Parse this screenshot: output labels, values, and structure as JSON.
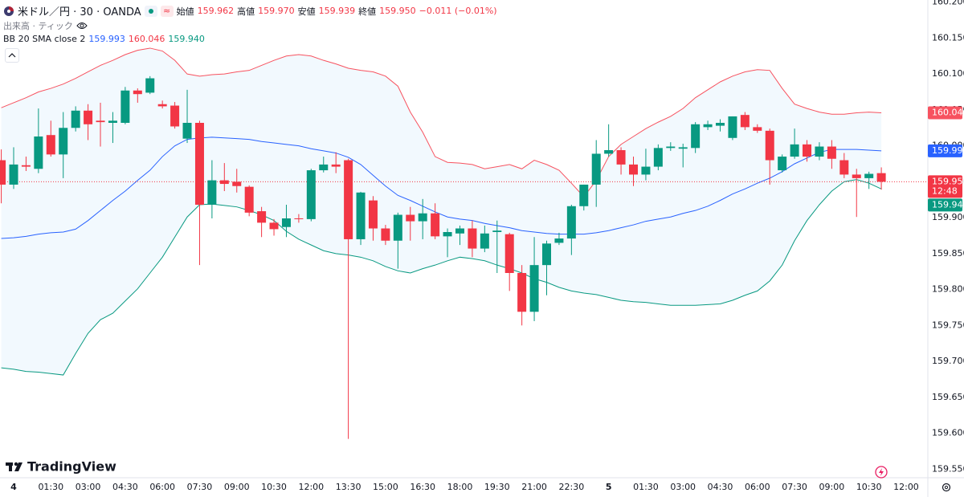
{
  "header": {
    "symbol": "米ドル／円 · 30 · OANDA",
    "ohlc": [
      {
        "label": "始値",
        "value": "159.962"
      },
      {
        "label": "高値",
        "value": "159.970"
      },
      {
        "label": "安値",
        "value": "159.939"
      },
      {
        "label": "終値",
        "value": "159.950"
      }
    ],
    "change": "−0.011 (−0.01%)",
    "volume": "出来高 · ティック",
    "bb": {
      "label": "BB 20 SMA close 2",
      "values": [
        "159.993",
        "160.046",
        "159.940"
      ]
    },
    "countdown": "12:48"
  },
  "logo": "TradingView",
  "chart_data": {
    "type": "candlestick",
    "categories": [
      null,
      "4",
      null,
      null,
      "01:30",
      null,
      null,
      "03:00",
      null,
      null,
      "04:30",
      null,
      null,
      "06:00",
      null,
      null,
      "07:30",
      null,
      null,
      "09:00",
      null,
      null,
      "10:30",
      null,
      null,
      "12:00",
      null,
      null,
      "13:30",
      null,
      null,
      "15:00",
      null,
      null,
      "16:30",
      null,
      null,
      "18:00",
      null,
      null,
      "19:30",
      null,
      null,
      "21:00",
      null,
      null,
      "22:30",
      null,
      null,
      "5",
      null,
      null,
      "01:30",
      null,
      null,
      "03:00",
      null,
      null,
      "04:30",
      null,
      null,
      "06:00",
      null,
      null,
      "07:30",
      null,
      null,
      "09:00",
      null,
      null,
      "10:30",
      null,
      null,
      "12:00"
    ],
    "open": [
      159.98,
      159.946,
      159.973,
      159.968,
      160.015,
      159.988,
      160.025,
      160.049,
      160.035,
      160.032,
      160.032,
      160.077,
      160.074,
      160.058,
      160.056,
      160.01,
      160.032,
      159.918,
      159.952,
      159.95,
      159.943,
      159.909,
      159.893,
      159.887,
      159.899,
      159.898,
      159.966,
      159.974,
      159.98,
      159.87,
      159.924,
      159.885,
      159.868,
      159.904,
      159.895,
      159.906,
      159.874,
      159.878,
      159.885,
      159.857,
      159.88,
      159.877,
      159.823,
      159.769,
      159.834,
      159.865,
      159.871,
      159.916,
      159.946,
      159.989,
      159.994,
      159.974,
      159.96,
      159.971,
      159.997,
      159.996,
      159.997,
      160.026,
      160.028,
      160.011,
      160.043,
      160.026,
      160.021,
      159.966,
      159.985,
      160.002,
      159.985,
      159.999,
      159.98,
      159.96,
      159.955,
      159.962,
      null,
      null
    ],
    "high": [
      159.995,
      159.998,
      159.985,
      160.052,
      160.035,
      160.047,
      160.055,
      160.058,
      160.06,
      160.047,
      160.082,
      160.08,
      160.097,
      160.063,
      160.061,
      160.078,
      160.035,
      159.98,
      159.976,
      159.968,
      159.945,
      159.915,
      159.898,
      159.918,
      159.905,
      159.968,
      159.985,
      159.991,
      159.982,
      159.936,
      159.93,
      159.89,
      159.907,
      159.915,
      159.926,
      159.92,
      159.885,
      159.889,
      159.896,
      159.889,
      159.896,
      159.879,
      159.834,
      159.873,
      159.868,
      159.879,
      159.918,
      159.946,
      160.008,
      160.03,
      159.998,
      159.985,
      159.996,
      160.002,
      160.005,
      160.003,
      160.033,
      160.035,
      160.037,
      160.041,
      160.047,
      160.03,
      160.024,
      159.988,
      160.024,
      160.008,
      160.005,
      160.008,
      159.99,
      159.968,
      159.964,
      159.97,
      null,
      null
    ],
    "low": [
      159.92,
      159.94,
      159.965,
      159.962,
      159.985,
      159.955,
      160.02,
      160.008,
      159.999,
      160.004,
      160.03,
      160.06,
      160.072,
      160.052,
      160.024,
      160.004,
      159.834,
      159.899,
      159.937,
      159.935,
      159.902,
      159.873,
      159.875,
      159.873,
      159.893,
      159.895,
      159.963,
      159.962,
      159.592,
      159.862,
      159.868,
      159.862,
      159.829,
      159.868,
      159.87,
      159.87,
      159.845,
      159.862,
      159.845,
      159.852,
      159.823,
      159.798,
      159.75,
      159.756,
      159.792,
      159.862,
      159.848,
      159.91,
      159.915,
      159.985,
      159.96,
      159.944,
      159.952,
      159.966,
      159.993,
      159.97,
      159.99,
      160.022,
      160.02,
      160.008,
      160.022,
      160.018,
      159.946,
      159.963,
      159.982,
      159.978,
      159.98,
      159.968,
      159.955,
      159.901,
      159.94,
      159.939,
      null,
      null
    ],
    "close": [
      159.946,
      159.974,
      159.971,
      160.013,
      159.988,
      160.025,
      160.049,
      160.03,
      160.033,
      160.035,
      160.077,
      160.072,
      160.094,
      160.055,
      160.027,
      160.032,
      159.918,
      159.952,
      159.947,
      159.944,
      159.907,
      159.893,
      159.884,
      159.899,
      159.898,
      159.966,
      159.974,
      159.971,
      159.87,
      159.935,
      159.885,
      159.868,
      159.904,
      159.895,
      159.906,
      159.874,
      159.88,
      159.885,
      159.857,
      159.878,
      159.882,
      159.823,
      159.769,
      159.834,
      159.864,
      159.871,
      159.916,
      159.946,
      159.989,
      159.994,
      159.974,
      159.96,
      159.971,
      159.997,
      159.999,
      159.998,
      160.03,
      160.03,
      160.032,
      160.041,
      160.026,
      160.021,
      159.98,
      159.985,
      160.002,
      159.985,
      159.999,
      159.982,
      159.96,
      159.955,
      159.961,
      159.95,
      null,
      null
    ],
    "up_color": "#089981",
    "down_color": "#f23645",
    "series": [
      {
        "color": "#2962ff",
        "values": [
          159.871,
          159.872,
          159.874,
          159.877,
          159.879,
          159.88,
          159.884,
          159.896,
          159.91,
          159.924,
          159.937,
          159.952,
          159.966,
          159.985,
          160.0,
          160.009,
          160.011,
          160.012,
          160.011,
          160.01,
          160.009,
          160.006,
          160.004,
          160.002,
          160.0,
          159.996,
          159.993,
          159.99,
          159.984,
          159.974,
          159.959,
          159.944,
          159.931,
          159.924,
          159.916,
          159.908,
          159.901,
          159.898,
          159.896,
          159.892,
          159.889,
          159.886,
          159.882,
          159.88,
          159.878,
          159.877,
          159.877,
          159.877,
          159.879,
          159.882,
          159.886,
          159.89,
          159.895,
          159.898,
          159.901,
          159.906,
          159.91,
          159.916,
          159.924,
          159.933,
          159.94,
          159.948,
          159.955,
          159.964,
          159.975,
          159.983,
          159.991,
          159.995,
          159.995,
          159.995,
          159.994,
          159.993,
          null,
          null
        ]
      },
      {
        "color": "#f7525f",
        "values": [
          160.053,
          160.06,
          160.067,
          160.075,
          160.08,
          160.086,
          160.094,
          160.103,
          160.112,
          160.119,
          160.127,
          160.133,
          160.136,
          160.132,
          160.119,
          160.1,
          160.097,
          160.099,
          160.1,
          160.103,
          160.105,
          160.112,
          160.119,
          160.125,
          160.127,
          160.125,
          160.119,
          160.114,
          160.108,
          160.105,
          160.103,
          160.097,
          160.083,
          160.047,
          160.019,
          159.985,
          159.977,
          159.976,
          159.974,
          159.968,
          159.971,
          159.974,
          159.968,
          159.98,
          159.974,
          159.966,
          159.948,
          159.929,
          159.952,
          159.985,
          160.002,
          160.013,
          160.024,
          160.033,
          160.041,
          160.052,
          160.067,
          160.078,
          160.089,
          160.097,
          160.103,
          160.106,
          160.105,
          160.08,
          160.058,
          160.052,
          160.047,
          160.044,
          160.044,
          160.046,
          160.047,
          160.046,
          null,
          null
        ]
      },
      {
        "color": "#089981",
        "values": [
          159.691,
          159.689,
          159.686,
          159.685,
          159.683,
          159.681,
          159.711,
          159.739,
          159.758,
          159.767,
          159.784,
          159.801,
          159.823,
          159.845,
          159.873,
          159.901,
          159.918,
          159.919,
          159.917,
          159.915,
          159.91,
          159.904,
          159.896,
          159.881,
          159.87,
          159.862,
          159.854,
          159.85,
          159.848,
          159.845,
          159.84,
          159.832,
          159.826,
          159.823,
          159.829,
          159.834,
          159.84,
          159.845,
          159.843,
          159.84,
          159.834,
          159.829,
          159.823,
          159.815,
          159.81,
          159.803,
          159.798,
          159.795,
          159.793,
          159.789,
          159.785,
          159.783,
          159.782,
          159.78,
          159.778,
          159.778,
          159.778,
          159.779,
          159.78,
          159.785,
          159.792,
          159.798,
          159.812,
          159.834,
          159.868,
          159.896,
          159.918,
          159.937,
          159.95,
          159.953,
          159.948,
          159.94,
          null,
          null
        ]
      }
    ],
    "band_fill": "#2196f3",
    "ylim": [
      159.538,
      160.203
    ],
    "yticks": [
      {
        "value": 160.2,
        "label": "160.200"
      },
      {
        "value": 160.15,
        "label": "160.150"
      },
      {
        "value": 160.1,
        "label": "160.100"
      },
      {
        "value": 160.05,
        "label": "160.050"
      },
      {
        "value": 160.0,
        "label": "160.000"
      },
      {
        "value": 159.95,
        "label": "159.950"
      },
      {
        "value": 159.9,
        "label": "159.900"
      },
      {
        "value": 159.85,
        "label": "159.850"
      },
      {
        "value": 159.8,
        "label": "159.800"
      },
      {
        "value": 159.75,
        "label": "159.750"
      },
      {
        "value": 159.7,
        "label": "159.700"
      },
      {
        "value": 159.65,
        "label": "159.650"
      },
      {
        "value": 159.6,
        "label": "159.600"
      },
      {
        "value": 159.55,
        "label": "159.550"
      }
    ],
    "grid": false
  }
}
